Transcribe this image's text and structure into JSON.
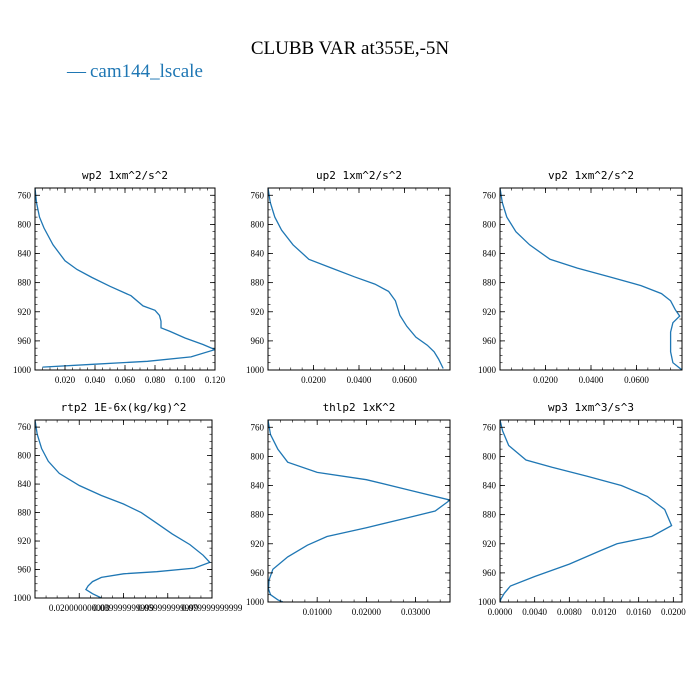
{
  "figure": {
    "title": "CLUBB VAR at355E,-5N",
    "legend": {
      "label": "cam144_lscale",
      "line": "—",
      "color": "#1f77b4"
    }
  },
  "chart_data": [
    {
      "type": "line",
      "title": "wp2  1xm^2/s^2",
      "xlim": [
        0,
        0.12
      ],
      "ylim": [
        1000,
        750
      ],
      "xticks": [
        0.02,
        0.04,
        0.06,
        0.08,
        0.1,
        0.12
      ],
      "xtick_labels": [
        "0.020",
        "0.040",
        "0.060",
        "0.080",
        "0.100",
        "0.120"
      ],
      "yticks": [
        760,
        800,
        840,
        880,
        920,
        960,
        1000
      ],
      "ytick_labels": [
        "760",
        "800",
        "840",
        "880",
        "920",
        "960",
        "1000"
      ],
      "series": [
        {
          "color": "#1f77b4",
          "x": [
            0,
            0.001,
            0.003,
            0.006,
            0.012,
            0.02,
            0.028,
            0.038,
            0.05,
            0.064,
            0.072,
            0.08,
            0.083,
            0.084,
            0.084,
            0.09,
            0.1,
            0.112,
            0.12,
            0.104,
            0.075,
            0.04,
            0.005
          ],
          "y": [
            750,
            770,
            790,
            805,
            828,
            850,
            862,
            873,
            885,
            898,
            912,
            918,
            925,
            933,
            942,
            947,
            956,
            965,
            972,
            982,
            988,
            992,
            996
          ]
        }
      ]
    },
    {
      "type": "line",
      "title": "up2  1xm^2/s^2",
      "xlim": [
        0,
        0.08
      ],
      "ylim": [
        1000,
        750
      ],
      "xticks": [
        0.02,
        0.04,
        0.06
      ],
      "xtick_labels": [
        "0.0200",
        "0.0400",
        "0.0600"
      ],
      "yticks": [
        760,
        800,
        840,
        880,
        920,
        960,
        1000
      ],
      "ytick_labels": [
        "760",
        "800",
        "840",
        "880",
        "920",
        "960",
        "1000"
      ],
      "series": [
        {
          "color": "#1f77b4",
          "x": [
            0,
            0.001,
            0.003,
            0.006,
            0.011,
            0.018,
            0.028,
            0.038,
            0.047,
            0.053,
            0.056,
            0.058,
            0.061,
            0.065,
            0.07,
            0.073,
            0.075,
            0.077
          ],
          "y": [
            750,
            770,
            790,
            808,
            828,
            848,
            860,
            872,
            882,
            892,
            905,
            925,
            940,
            955,
            966,
            975,
            985,
            998
          ]
        }
      ]
    },
    {
      "type": "line",
      "title": "vp2  1xm^2/s^2",
      "xlim": [
        0,
        0.08
      ],
      "ylim": [
        1000,
        750
      ],
      "xticks": [
        0.02,
        0.04,
        0.06
      ],
      "xtick_labels": [
        "0.0200",
        "0.0400",
        "0.0600"
      ],
      "yticks": [
        760,
        800,
        840,
        880,
        920,
        960,
        1000
      ],
      "ytick_labels": [
        "760",
        "800",
        "840",
        "880",
        "920",
        "960",
        "1000"
      ],
      "series": [
        {
          "color": "#1f77b4",
          "x": [
            0,
            0.001,
            0.003,
            0.007,
            0.013,
            0.022,
            0.034,
            0.048,
            0.062,
            0.071,
            0.075,
            0.077,
            0.079,
            0.076,
            0.075,
            0.075,
            0.075,
            0.076,
            0.08
          ],
          "y": [
            750,
            770,
            790,
            810,
            828,
            848,
            860,
            872,
            884,
            895,
            905,
            917,
            926,
            935,
            948,
            960,
            975,
            990,
            1000
          ]
        }
      ]
    },
    {
      "type": "line",
      "title": "rtp2  1E-6x(kg/kg)^2",
      "xlim": [
        0,
        0.08
      ],
      "ylim": [
        1000,
        750
      ],
      "xticks": [
        0.02,
        0.04,
        0.06,
        0.08
      ],
      "xtick_labels": [
        "0.020000000000",
        "0.039999999999",
        "0.059999999999",
        "0.079999999999"
      ],
      "yticks": [
        760,
        800,
        840,
        880,
        920,
        960,
        1000
      ],
      "ytick_labels": [
        "760",
        "800",
        "840",
        "880",
        "920",
        "960",
        "1000"
      ],
      "series": [
        {
          "color": "#1f77b4",
          "x": [
            0,
            0.001,
            0.003,
            0.006,
            0.011,
            0.02,
            0.03,
            0.04,
            0.048,
            0.055,
            0.062,
            0.07,
            0.076,
            0.079,
            0.072,
            0.055,
            0.04,
            0.03,
            0.026,
            0.024,
            0.023,
            0.026,
            0.03
          ],
          "y": [
            750,
            770,
            790,
            808,
            825,
            842,
            856,
            868,
            880,
            895,
            910,
            925,
            940,
            950,
            958,
            963,
            966,
            971,
            977,
            983,
            988,
            994,
            1000
          ]
        }
      ]
    },
    {
      "type": "line",
      "title": "thlp2  1xK^2",
      "xlim": [
        0,
        0.037
      ],
      "ylim": [
        1000,
        750
      ],
      "xticks": [
        0.01,
        0.02,
        0.03
      ],
      "xtick_labels": [
        "0.01000",
        "0.02000",
        "0.03000"
      ],
      "yticks": [
        760,
        800,
        840,
        880,
        920,
        960,
        1000
      ],
      "ytick_labels": [
        "760",
        "800",
        "840",
        "880",
        "920",
        "960",
        "1000"
      ],
      "series": [
        {
          "color": "#1f77b4",
          "x": [
            0,
            0.0005,
            0.002,
            0.004,
            0.01,
            0.02,
            0.028,
            0.037,
            0.034,
            0.028,
            0.02,
            0.012,
            0.008,
            0.004,
            0.001,
            0.0002,
            0.0001,
            0.0005,
            0.002,
            0.003
          ],
          "y": [
            750,
            770,
            790,
            808,
            822,
            832,
            845,
            860,
            875,
            885,
            898,
            910,
            922,
            938,
            955,
            970,
            982,
            990,
            997,
            1000
          ]
        }
      ]
    },
    {
      "type": "line",
      "title": "wp3  1xm^3/s^3",
      "xlim": [
        0,
        0.021
      ],
      "ylim": [
        1000,
        750
      ],
      "xticks": [
        0,
        0.004,
        0.008,
        0.012,
        0.016,
        0.02
      ],
      "xtick_labels": [
        "0.0000",
        "0.0040",
        "0.0080",
        "0.0120",
        "0.0160",
        "0.0200"
      ],
      "yticks": [
        760,
        800,
        840,
        880,
        920,
        960,
        1000
      ],
      "ytick_labels": [
        "760",
        "800",
        "840",
        "880",
        "920",
        "960",
        "1000"
      ],
      "series": [
        {
          "color": "#1f77b4",
          "x": [
            0,
            0.0003,
            0.001,
            0.003,
            0.006,
            0.01,
            0.014,
            0.017,
            0.019,
            0.0198,
            0.0175,
            0.0135,
            0.0115,
            0.008,
            0.004,
            0.0012,
            0.0005,
            0.0001,
            0
          ],
          "y": [
            750,
            765,
            785,
            805,
            815,
            827,
            840,
            855,
            873,
            895,
            910,
            920,
            930,
            948,
            965,
            978,
            988,
            996,
            1000
          ]
        }
      ]
    }
  ]
}
